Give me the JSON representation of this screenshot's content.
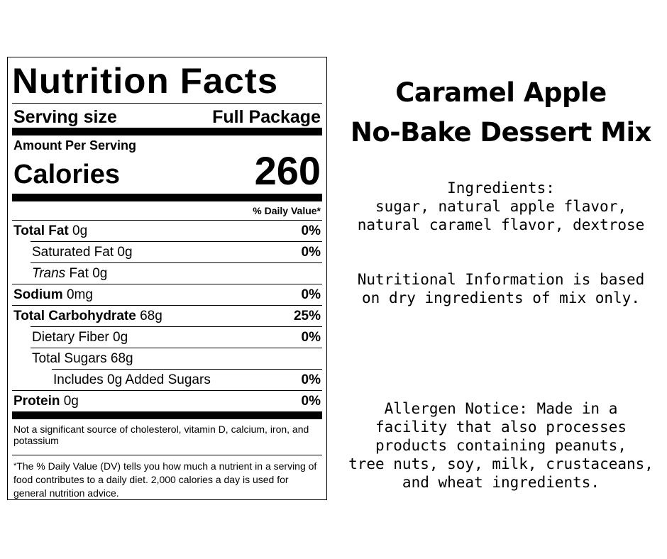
{
  "label": {
    "title": "Nutrition Facts",
    "serving_size_label": "Serving size",
    "serving_size_value": "Full Package",
    "amount_per_serving": "Amount Per Serving",
    "calories_label": "Calories",
    "calories_value": "260",
    "daily_value_header": "% Daily Value*",
    "rows": [
      {
        "name": "Total Fat",
        "amount": "0g",
        "pct": "0%",
        "bold": true
      },
      {
        "name": "Saturated Fat",
        "amount": "0g",
        "pct": "0%",
        "bold": false
      },
      {
        "name_italic": "Trans",
        "name": "Fat",
        "amount": "0g",
        "pct": "",
        "bold": false
      },
      {
        "name": "Sodium",
        "amount": "0mg",
        "pct": "0%",
        "bold": true
      },
      {
        "name": "Total Carbohydrate",
        "amount": "68g",
        "pct": "25%",
        "bold": true
      },
      {
        "name": "Dietary Fiber",
        "amount": "0g",
        "pct": "0%",
        "bold": false
      },
      {
        "name": "Total Sugars",
        "amount": "68g",
        "pct": "",
        "bold": false
      },
      {
        "name": "Includes 0g Added Sugars",
        "amount": "",
        "pct": "0%",
        "bold": false
      },
      {
        "name": "Protein",
        "amount": "0g",
        "pct": "0%",
        "bold": true
      }
    ],
    "not_significant": "Not a significant source of cholesterol, vitamin D, calcium, iron, and potassium",
    "footnote_star": "*",
    "footnote": "The % Daily Value (DV) tells you how much a nutrient in a serving of food contributes to a daily diet. 2,000 calories a day is used for general nutrition advice."
  },
  "product": {
    "title_line1": "Caramel Apple",
    "title_line2": "No-Bake Dessert Mix",
    "ingredients_heading": "Ingredients:",
    "ingredients_line1": "sugar, natural apple flavor,",
    "ingredients_line2": "natural caramel flavor, dextrose",
    "nutrition_note_line1": "Nutritional Information is based",
    "nutrition_note_line2": "on dry ingredients of mix only.",
    "allergen_lines": [
      "Allergen Notice: Made in a",
      "facility that also processes",
      "products containing peanuts,",
      "tree nuts, soy, milk, crustaceans,",
      "and wheat ingredients."
    ]
  }
}
